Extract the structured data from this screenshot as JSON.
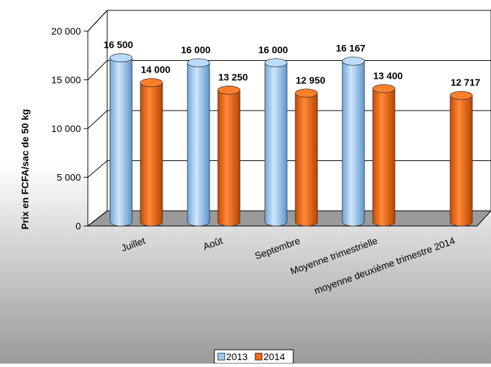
{
  "chart_data": {
    "type": "bar",
    "title": "",
    "xlabel": "",
    "ylabel": "Prix en FCFA/sac de 50 kg",
    "ylim": [
      0,
      20000
    ],
    "y_ticks": [
      0,
      5000,
      10000,
      15000,
      20000
    ],
    "y_tick_labels": [
      "0",
      "5 000",
      "10 000",
      "15 000",
      "20 000"
    ],
    "grid": true,
    "legend_position": "bottom",
    "categories": [
      "Juillet",
      "Août",
      "Septembre",
      "Moyenne trimestrielle",
      "moyenne deuxième trimestre 2014"
    ],
    "series": [
      {
        "name": "2013",
        "color": "#9cc8ef",
        "values": [
          16500,
          16000,
          16000,
          16167,
          null
        ],
        "labels": [
          "16 500",
          "16 000",
          "16 000",
          "16 167",
          ""
        ]
      },
      {
        "name": "2014",
        "color": "#f06a14",
        "values": [
          14000,
          13250,
          12950,
          13400,
          12717
        ],
        "labels": [
          "14 000",
          "13 250",
          "12 950",
          "13 400",
          "12 717"
        ]
      }
    ]
  }
}
